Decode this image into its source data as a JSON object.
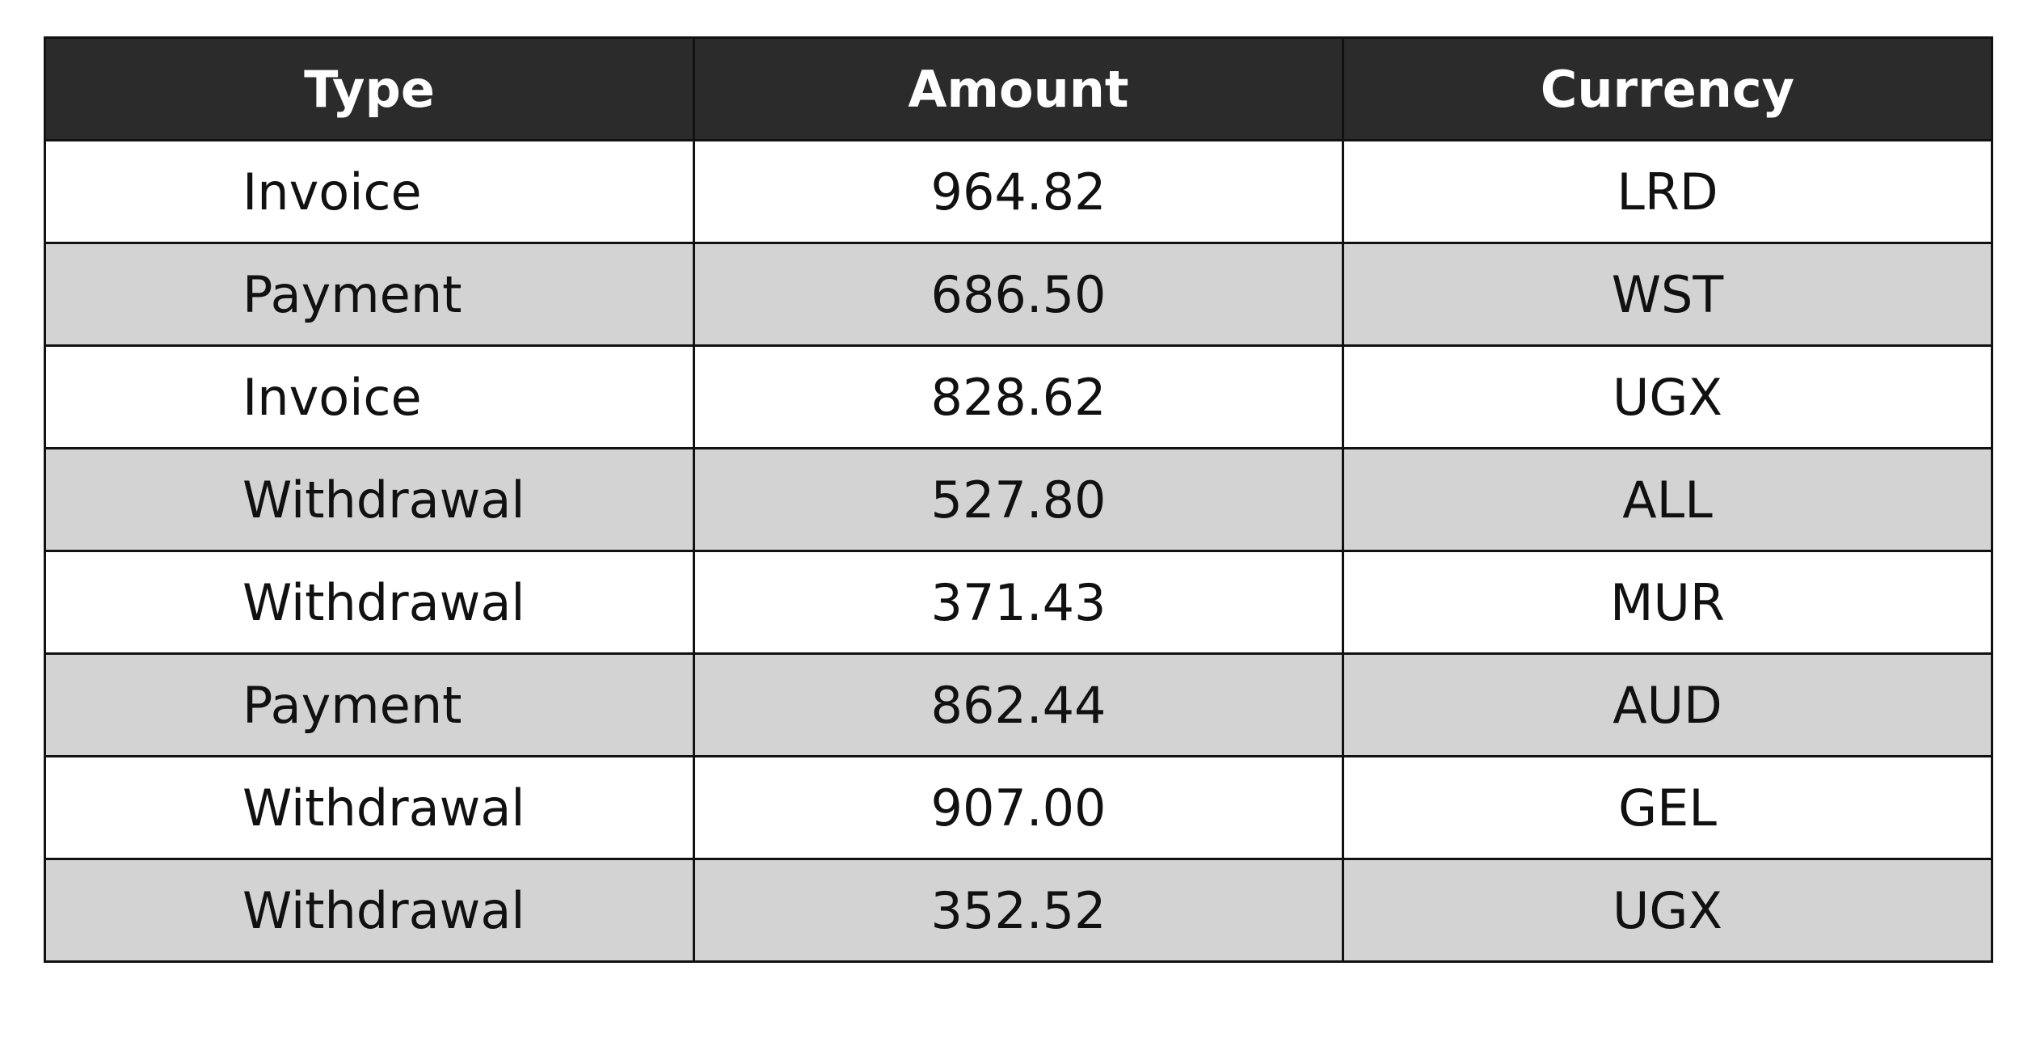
{
  "table": {
    "headers": [
      "Type",
      "Amount",
      "Currency"
    ],
    "rows": [
      {
        "type": "Invoice",
        "amount": "964.82",
        "currency": "LRD"
      },
      {
        "type": "Payment",
        "amount": "686.50",
        "currency": "WST"
      },
      {
        "type": "Invoice",
        "amount": "828.62",
        "currency": "UGX"
      },
      {
        "type": "Withdrawal",
        "amount": "527.80",
        "currency": "ALL"
      },
      {
        "type": "Withdrawal",
        "amount": "371.43",
        "currency": "MUR"
      },
      {
        "type": "Payment",
        "amount": "862.44",
        "currency": "AUD"
      },
      {
        "type": "Withdrawal",
        "amount": "907.00",
        "currency": "GEL"
      },
      {
        "type": "Withdrawal",
        "amount": "352.52",
        "currency": "UGX"
      }
    ]
  },
  "colors": {
    "header_bg": "#2b2b2b",
    "header_text": "#ffffff",
    "row_even_bg": "#ffffff",
    "row_odd_bg": "#d3d3d3",
    "border": "#111111"
  }
}
